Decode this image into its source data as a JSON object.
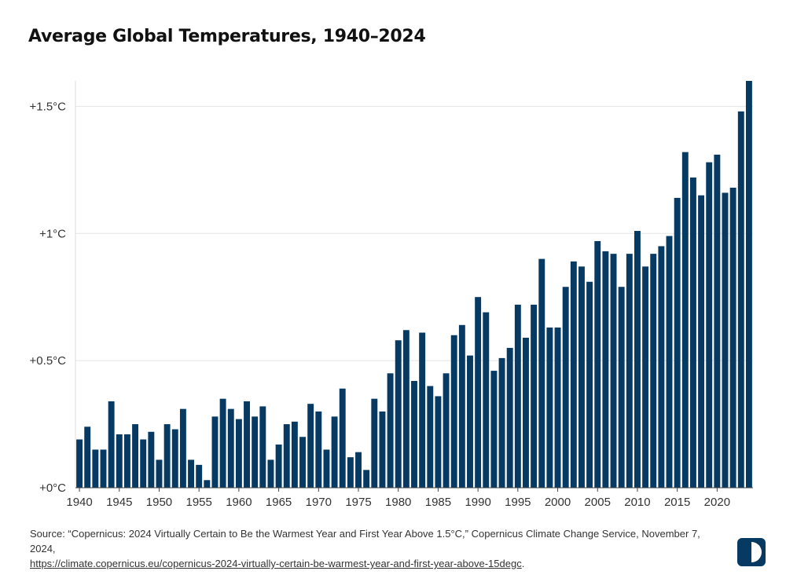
{
  "title": "Average Global Temperatures, 1940–2024",
  "source": {
    "prefix": "Source: “Copernicus: 2024 Virtually Certain to Be the Warmest Year and First Year Above 1.5°C,” Copernicus Climate Change Service, November 7, 2024,",
    "link_text": "https://climate.copernicus.eu/copernicus-2024-virtually-certain-be-warmest-year-and-first-year-above-15degc",
    "suffix": "."
  },
  "logo_icon": "half-circle-logo-icon",
  "colors": {
    "bar": "#063a62",
    "grid": "#e4e4e4",
    "axis": "#444444",
    "text": "#333333"
  },
  "chart_data": {
    "type": "bar",
    "title": "Average Global Temperatures, 1940–2024",
    "xlabel": "",
    "ylabel": "",
    "grid": true,
    "ylim": [
      0,
      1.6
    ],
    "y_ticks": [
      0,
      0.5,
      1,
      1.5
    ],
    "y_tick_labels": [
      "+0°C",
      "+0.5°C",
      "+1°C",
      "+1.5°C"
    ],
    "x_tick_labels": [
      "1940",
      "1945",
      "1950",
      "1955",
      "1960",
      "1965",
      "1970",
      "1975",
      "1980",
      "1985",
      "1990",
      "1995",
      "2000",
      "2005",
      "2010",
      "2015",
      "2020"
    ],
    "categories": [
      1940,
      1941,
      1942,
      1943,
      1944,
      1945,
      1946,
      1947,
      1948,
      1949,
      1950,
      1951,
      1952,
      1953,
      1954,
      1955,
      1956,
      1957,
      1958,
      1959,
      1960,
      1961,
      1962,
      1963,
      1964,
      1965,
      1966,
      1967,
      1968,
      1969,
      1970,
      1971,
      1972,
      1973,
      1974,
      1975,
      1976,
      1977,
      1978,
      1979,
      1980,
      1981,
      1982,
      1983,
      1984,
      1985,
      1986,
      1987,
      1988,
      1989,
      1990,
      1991,
      1992,
      1993,
      1994,
      1995,
      1996,
      1997,
      1998,
      1999,
      2000,
      2001,
      2002,
      2003,
      2004,
      2005,
      2006,
      2007,
      2008,
      2009,
      2010,
      2011,
      2012,
      2013,
      2014,
      2015,
      2016,
      2017,
      2018,
      2019,
      2020,
      2021,
      2022,
      2023,
      2024
    ],
    "values": [
      0.19,
      0.24,
      0.15,
      0.15,
      0.34,
      0.21,
      0.21,
      0.25,
      0.19,
      0.22,
      0.11,
      0.25,
      0.23,
      0.31,
      0.11,
      0.09,
      0.03,
      0.28,
      0.35,
      0.31,
      0.27,
      0.34,
      0.28,
      0.32,
      0.11,
      0.17,
      0.25,
      0.26,
      0.2,
      0.33,
      0.3,
      0.15,
      0.28,
      0.39,
      0.12,
      0.14,
      0.07,
      0.35,
      0.3,
      0.45,
      0.58,
      0.62,
      0.42,
      0.61,
      0.4,
      0.36,
      0.45,
      0.6,
      0.64,
      0.52,
      0.75,
      0.69,
      0.46,
      0.51,
      0.55,
      0.72,
      0.59,
      0.72,
      0.9,
      0.63,
      0.63,
      0.79,
      0.89,
      0.87,
      0.81,
      0.97,
      0.93,
      0.92,
      0.79,
      0.92,
      1.01,
      0.87,
      0.92,
      0.95,
      0.99,
      1.14,
      1.32,
      1.22,
      1.15,
      1.28,
      1.31,
      1.16,
      1.18,
      1.48,
      1.6
    ]
  }
}
